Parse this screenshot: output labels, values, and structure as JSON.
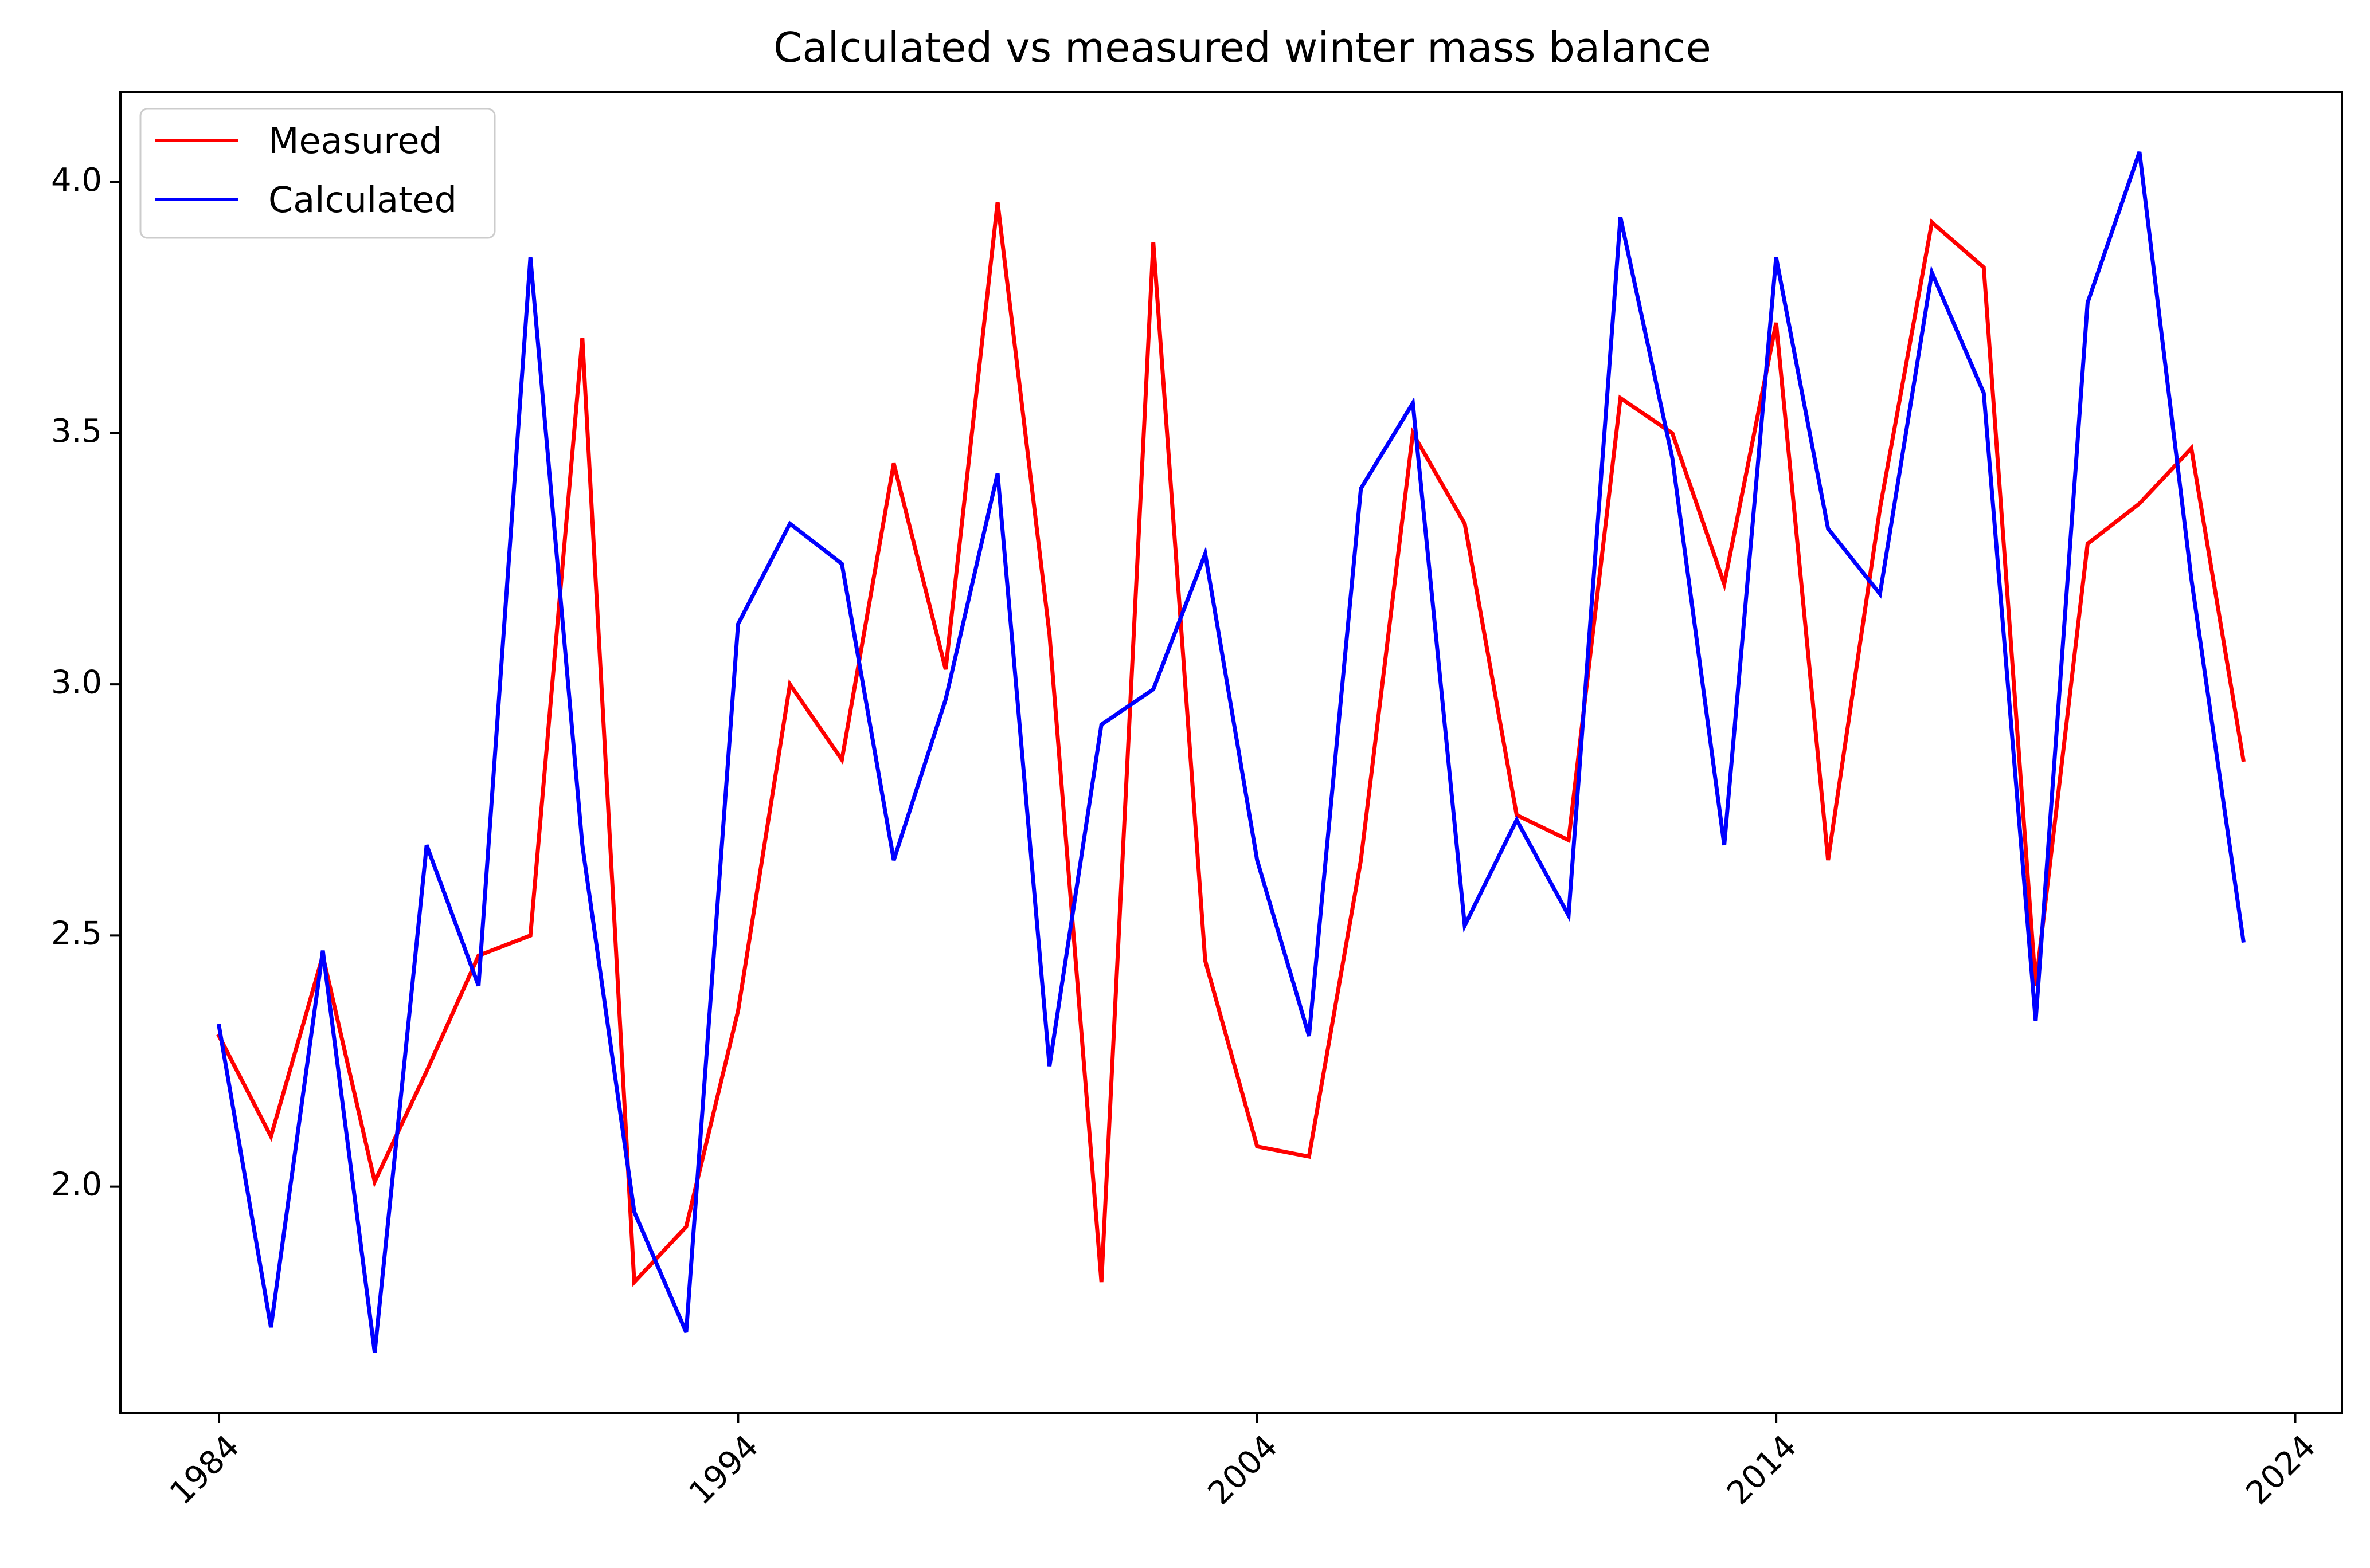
{
  "chart_data": {
    "type": "line",
    "title": "Calculated vs measured winter mass balance",
    "xlabel": "",
    "ylabel": "",
    "xlim": [
      1982.1,
      2024.9
    ],
    "ylim": [
      1.55,
      4.18
    ],
    "xticks": [
      1984,
      1994,
      2004,
      2014,
      2024
    ],
    "xtick_labels": [
      "1984",
      "1994",
      "2004",
      "2014",
      "2024"
    ],
    "yticks": [
      2.0,
      2.5,
      3.0,
      3.5,
      4.0
    ],
    "ytick_labels": [
      "2.0",
      "2.5",
      "3.0",
      "3.5",
      "4.0"
    ],
    "grid": false,
    "legend_position": "top-left",
    "x": [
      1984,
      1985,
      1986,
      1987,
      1988,
      1989,
      1990,
      1991,
      1992,
      1993,
      1994,
      1995,
      1996,
      1997,
      1998,
      1999,
      2000,
      2001,
      2002,
      2003,
      2004,
      2005,
      2006,
      2007,
      2008,
      2009,
      2010,
      2011,
      2012,
      2013,
      2014,
      2015,
      2016,
      2017,
      2018,
      2019,
      2020,
      2021,
      2022,
      2023
    ],
    "series": [
      {
        "name": "Measured",
        "color": "#ff0000",
        "values": [
          2.3,
          2.1,
          2.46,
          2.01,
          2.23,
          2.46,
          2.5,
          3.69,
          1.81,
          1.92,
          2.35,
          3.0,
          2.85,
          3.44,
          3.03,
          3.96,
          3.1,
          1.81,
          3.88,
          2.45,
          2.08,
          2.06,
          2.65,
          3.5,
          3.32,
          2.74,
          2.69,
          3.57,
          3.5,
          3.2,
          3.72,
          2.65,
          3.35,
          3.92,
          3.83,
          2.4,
          3.28,
          3.36,
          3.47,
          2.85
        ]
      },
      {
        "name": "Calculated",
        "color": "#0000ff",
        "values": [
          2.32,
          1.72,
          2.47,
          1.67,
          2.68,
          2.4,
          3.85,
          2.68,
          1.95,
          1.71,
          3.12,
          3.32,
          3.24,
          2.65,
          2.97,
          3.42,
          2.24,
          2.92,
          2.99,
          3.26,
          2.65,
          2.3,
          3.39,
          3.56,
          2.52,
          2.73,
          2.54,
          3.93,
          3.45,
          2.68,
          3.85,
          3.31,
          3.18,
          3.82,
          3.58,
          2.33,
          3.76,
          4.06,
          3.21,
          2.49
        ]
      }
    ]
  }
}
